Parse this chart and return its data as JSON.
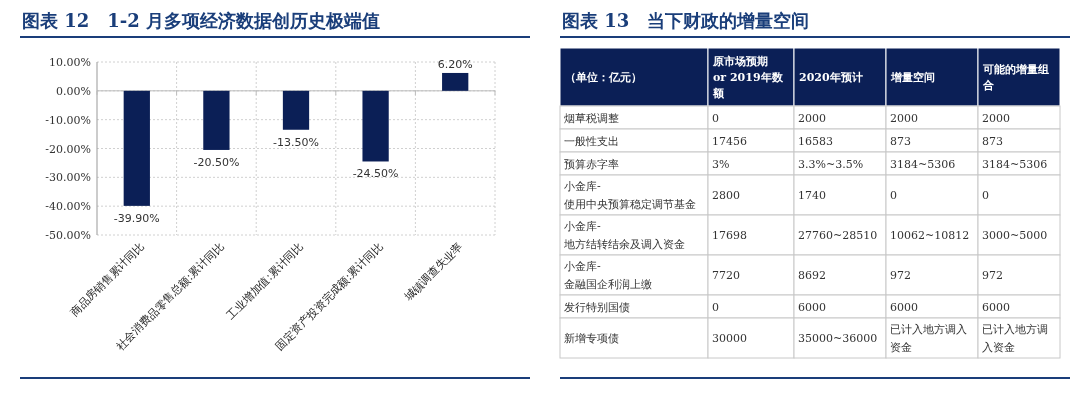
{
  "chart_data": [
    {
      "type": "bar",
      "title": "图表 12　1-2 月多项经济数据创历史极端值",
      "categories": [
        "商品房销售累计同比",
        "社会消费品零售总额:累计同比",
        "工业增加值:累计同比",
        "固定资产投资完成额:累计同比",
        "城镇调查失业率"
      ],
      "values": [
        -39.9,
        -20.5,
        -13.5,
        -24.5,
        6.2
      ],
      "value_labels": [
        "-39.90%",
        "-20.50%",
        "-13.50%",
        "-24.50%",
        "6.20%"
      ],
      "color": "#0b1f56",
      "ylim": [
        -50,
        10
      ],
      "yticks": [
        {
          "value": 10,
          "label": "10.00%"
        },
        {
          "value": 0,
          "label": "0.00%"
        },
        {
          "value": -10,
          "label": "-10.00%"
        },
        {
          "value": -20,
          "label": "-20.00%"
        },
        {
          "value": -30,
          "label": "-30.00%"
        },
        {
          "value": -40,
          "label": "-40.00%"
        },
        {
          "value": -50,
          "label": "-50.00%"
        }
      ],
      "grid": true
    },
    {
      "type": "other",
      "title": "图表 13　当下财政的增量空间",
      "categories": [
        "（单位：亿元）",
        "原市场预期\nor 2019年数额",
        "2020年预计",
        "增量空间",
        "可能的增量组合"
      ],
      "y_categories": [
        "烟草税调整",
        "一般性支出",
        "预算赤字率",
        "小金库-\n使用中央预算稳定调节基金",
        "小金库-\n地方结转结余及调入资金",
        "小金库-\n金融国企利润上缴",
        "发行特别国债",
        "新增专项债"
      ],
      "cell_labels": [
        [
          "0",
          "2000",
          "2000",
          "2000"
        ],
        [
          "17456",
          "16583",
          "873",
          "873"
        ],
        [
          "3%",
          "3.3%~3.5%",
          "3184~5306",
          "3184~5306"
        ],
        [
          "2800",
          "1740",
          "0",
          "0"
        ],
        [
          "17698",
          "27760~28510",
          "10062~10812",
          "3000~5000"
        ],
        [
          "7720",
          "8692",
          "972",
          "972"
        ],
        [
          "0",
          "6000",
          "6000",
          "6000"
        ],
        [
          "30000",
          "35000~36000",
          "已计入地方调入资金",
          "已计入地方调入资金"
        ]
      ]
    }
  ]
}
